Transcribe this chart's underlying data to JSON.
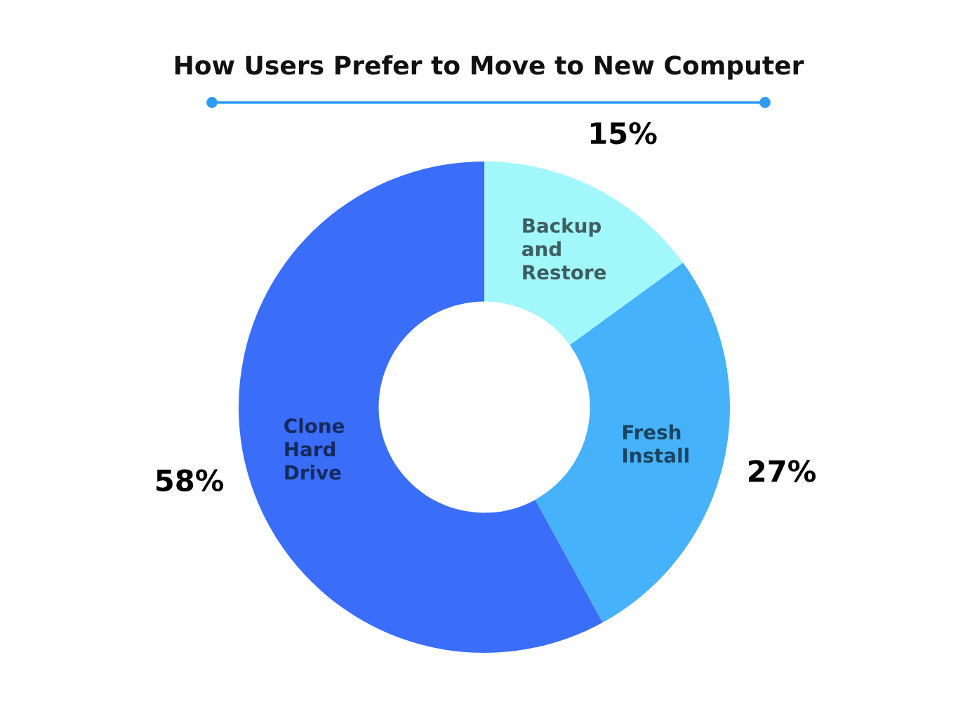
{
  "chart_data": {
    "type": "donut",
    "title": "How Users Prefer to Move to New Computer",
    "categories": [
      "Backup\nand\nRestore",
      "Fresh\nInstall",
      "Clone\nHard\nDrive"
    ],
    "values": [
      15,
      27,
      58
    ],
    "colors": [
      "#a2f7fb",
      "#45b2fb",
      "#3a6ef8"
    ],
    "value_labels": [
      "15%",
      "27%",
      "58%"
    ],
    "legend": false
  }
}
